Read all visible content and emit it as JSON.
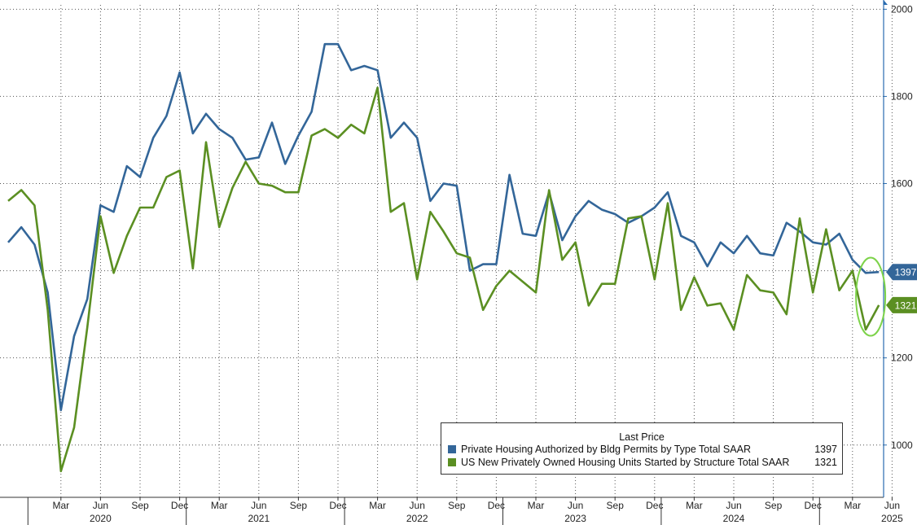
{
  "chart_data": {
    "type": "line",
    "x_start": "2019-11",
    "x_labels": [
      {
        "month": "2020-03",
        "label": "Mar"
      },
      {
        "month": "2020-06",
        "label": "Jun"
      },
      {
        "month": "2020-09",
        "label": "Sep"
      },
      {
        "month": "2020-12",
        "label": "Dec"
      },
      {
        "month": "2021-03",
        "label": "Mar"
      },
      {
        "month": "2021-06",
        "label": "Jun"
      },
      {
        "month": "2021-09",
        "label": "Sep"
      },
      {
        "month": "2021-12",
        "label": "Dec"
      },
      {
        "month": "2022-03",
        "label": "Mar"
      },
      {
        "month": "2022-06",
        "label": "Jun"
      },
      {
        "month": "2022-09",
        "label": "Sep"
      },
      {
        "month": "2022-12",
        "label": "Dec"
      },
      {
        "month": "2023-03",
        "label": "Mar"
      },
      {
        "month": "2023-06",
        "label": "Jun"
      },
      {
        "month": "2023-09",
        "label": "Sep"
      },
      {
        "month": "2023-12",
        "label": "Dec"
      },
      {
        "month": "2024-03",
        "label": "Mar"
      },
      {
        "month": "2024-06",
        "label": "Jun"
      },
      {
        "month": "2024-09",
        "label": "Sep"
      },
      {
        "month": "2024-12",
        "label": "Dec"
      },
      {
        "month": "2025-03",
        "label": "Mar"
      },
      {
        "month": "2025-06",
        "label": "Jun"
      }
    ],
    "year_labels": [
      "2020",
      "2021",
      "2022",
      "2023",
      "2024",
      "2025"
    ],
    "y_ticks": [
      1000,
      1200,
      1400,
      1600,
      1800,
      2000
    ],
    "ylim": [
      880,
      2010
    ],
    "grid": true,
    "series": [
      {
        "name": "Private Housing Authorized by Bldg Permits by Type Total SAAR",
        "color": "#336699",
        "last_value": 1397,
        "values": [
          1465,
          1500,
          1460,
          1350,
          1080,
          1250,
          1335,
          1550,
          1535,
          1640,
          1615,
          1705,
          1755,
          1855,
          1715,
          1760,
          1725,
          1705,
          1655,
          1660,
          1740,
          1645,
          1710,
          1765,
          1920,
          1920,
          1860,
          1870,
          1860,
          1705,
          1740,
          1705,
          1560,
          1600,
          1595,
          1400,
          1415,
          1415,
          1620,
          1485,
          1480,
          1580,
          1470,
          1525,
          1560,
          1540,
          1530,
          1510,
          1525,
          1545,
          1580,
          1480,
          1465,
          1410,
          1465,
          1440,
          1480,
          1440,
          1435,
          1510,
          1490,
          1465,
          1460,
          1485,
          1425,
          1395,
          1397
        ]
      },
      {
        "name": "US New Privately Owned Housing Units Started by Structure Total SAAR",
        "color": "#5b8f22",
        "last_value": 1321,
        "values": [
          1560,
          1585,
          1550,
          1310,
          940,
          1040,
          1270,
          1525,
          1395,
          1480,
          1545,
          1545,
          1615,
          1630,
          1405,
          1695,
          1500,
          1590,
          1650,
          1600,
          1595,
          1580,
          1580,
          1710,
          1725,
          1705,
          1735,
          1715,
          1820,
          1535,
          1555,
          1380,
          1535,
          1490,
          1440,
          1430,
          1310,
          1365,
          1400,
          1375,
          1350,
          1585,
          1425,
          1465,
          1320,
          1370,
          1370,
          1520,
          1525,
          1380,
          1555,
          1310,
          1385,
          1320,
          1325,
          1265,
          1390,
          1355,
          1350,
          1300,
          1520,
          1350,
          1495,
          1355,
          1400,
          1265,
          1321
        ]
      }
    ],
    "last_price_title": "Last Price",
    "highlight_note": "green ellipse around latest values"
  }
}
